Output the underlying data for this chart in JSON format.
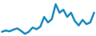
{
  "x": [
    0,
    1,
    2,
    3,
    4,
    5,
    6,
    7,
    8,
    9,
    10,
    11,
    12,
    13,
    14,
    15,
    16,
    17,
    18,
    19,
    20,
    21,
    22,
    23,
    24
  ],
  "y": [
    2.0,
    2.3,
    2.1,
    2.5,
    2.8,
    2.2,
    1.5,
    2.0,
    3.0,
    2.6,
    3.2,
    5.5,
    4.2,
    5.0,
    8.5,
    6.5,
    7.2,
    5.5,
    6.5,
    4.5,
    3.5,
    4.8,
    3.8,
    4.2,
    6.5
  ],
  "line_color": "#1a8bbf",
  "line_width": 1.8,
  "background_color": "#ffffff",
  "ylim": [
    1.0,
    9.5
  ],
  "xlim": [
    -0.5,
    24.5
  ]
}
